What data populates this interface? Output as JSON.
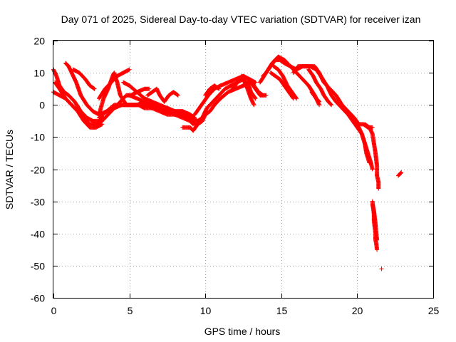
{
  "chart_data": {
    "type": "scatter",
    "title": "Day 071 of 2025, Sidereal Day-to-day VTEC variation (SDTVAR) for receiver izan",
    "xlabel": "GPS time / hours",
    "ylabel": "SDTVAR / TECUs",
    "xlim": [
      0,
      25
    ],
    "ylim": [
      -60,
      20
    ],
    "xticks": [
      0,
      5,
      10,
      15,
      20,
      25
    ],
    "yticks": [
      -60,
      -50,
      -40,
      -30,
      -20,
      -10,
      0,
      10,
      20
    ],
    "grid": true,
    "marker": "+",
    "color": "#ff0000",
    "tracks": [
      {
        "name": "track-1",
        "points": [
          [
            0.0,
            11
          ],
          [
            0.2,
            9
          ],
          [
            0.4,
            6
          ],
          [
            0.7,
            4
          ],
          [
            1.0,
            3
          ],
          [
            1.4,
            1
          ],
          [
            1.8,
            -2
          ],
          [
            2.2,
            -4
          ],
          [
            2.6,
            -5
          ],
          [
            3.0,
            -5
          ],
          [
            3.3,
            -4
          ]
        ]
      },
      {
        "name": "track-2",
        "points": [
          [
            0.0,
            4
          ],
          [
            0.4,
            3
          ],
          [
            0.8,
            2
          ],
          [
            1.2,
            0
          ],
          [
            1.6,
            -2
          ],
          [
            2.0,
            -4
          ],
          [
            2.4,
            -6
          ],
          [
            2.8,
            -6
          ],
          [
            3.2,
            -5
          ],
          [
            3.6,
            -3
          ],
          [
            4.0,
            -1
          ],
          [
            4.4,
            1
          ],
          [
            4.8,
            3
          ],
          [
            5.1,
            3
          ],
          [
            5.5,
            4
          ],
          [
            6.0,
            5
          ],
          [
            6.3,
            5
          ]
        ]
      },
      {
        "name": "track-3",
        "points": [
          [
            0.1,
            7
          ],
          [
            0.4,
            5
          ],
          [
            0.8,
            2
          ],
          [
            1.2,
            0
          ],
          [
            1.6,
            -2
          ],
          [
            2.0,
            -5
          ],
          [
            2.4,
            -7
          ],
          [
            2.8,
            -7
          ],
          [
            3.2,
            -6
          ]
        ]
      },
      {
        "name": "track-4",
        "points": [
          [
            0.8,
            13
          ],
          [
            1.0,
            12
          ],
          [
            1.2,
            10
          ],
          [
            1.5,
            7
          ],
          [
            1.8,
            3
          ],
          [
            2.2,
            0
          ],
          [
            2.6,
            -2
          ],
          [
            3.0,
            -3
          ],
          [
            3.5,
            -2
          ],
          [
            4.0,
            0
          ],
          [
            4.5,
            0
          ],
          [
            5.0,
            0
          ],
          [
            5.5,
            0
          ],
          [
            6.0,
            1
          ],
          [
            6.5,
            0
          ],
          [
            7.0,
            -1
          ],
          [
            7.5,
            -1
          ],
          [
            8.0,
            -2
          ],
          [
            8.5,
            -3
          ],
          [
            9.0,
            -4
          ],
          [
            9.5,
            -5
          ],
          [
            9.8,
            -4
          ],
          [
            10.1,
            -2
          ]
        ]
      },
      {
        "name": "track-5",
        "points": [
          [
            1.3,
            11
          ],
          [
            1.7,
            10
          ],
          [
            2.1,
            8
          ],
          [
            2.4,
            6
          ],
          [
            2.7,
            5
          ]
        ]
      },
      {
        "name": "track-6",
        "points": [
          [
            3.0,
            -3
          ],
          [
            3.3,
            2
          ],
          [
            3.6,
            5
          ],
          [
            3.9,
            9
          ],
          [
            4.0,
            10
          ],
          [
            4.2,
            7
          ],
          [
            4.4,
            3
          ],
          [
            4.8,
            0
          ],
          [
            5.2,
            0
          ],
          [
            5.6,
            0
          ],
          [
            6.0,
            -1
          ],
          [
            6.5,
            -1
          ],
          [
            7.0,
            -1
          ],
          [
            7.5,
            -2
          ],
          [
            8.0,
            -2
          ],
          [
            8.5,
            -2
          ],
          [
            9.0,
            -3
          ],
          [
            9.3,
            -4
          ]
        ]
      },
      {
        "name": "track-7",
        "points": [
          [
            3.0,
            2
          ],
          [
            3.4,
            5
          ],
          [
            3.8,
            7
          ],
          [
            4.2,
            9
          ],
          [
            4.6,
            10
          ],
          [
            5.0,
            11
          ]
        ]
      },
      {
        "name": "track-8",
        "points": [
          [
            3.0,
            -4
          ],
          [
            3.5,
            -2
          ],
          [
            4.0,
            -1
          ],
          [
            4.5,
            0
          ],
          [
            5.0,
            0
          ],
          [
            5.5,
            0
          ],
          [
            6.0,
            0
          ],
          [
            6.5,
            -1
          ],
          [
            7.0,
            -2
          ],
          [
            7.5,
            -3
          ],
          [
            8.0,
            -3
          ],
          [
            8.5,
            -3
          ],
          [
            9.0,
            -4
          ],
          [
            9.3,
            -6
          ],
          [
            9.5,
            -6
          ],
          [
            9.8,
            -5
          ]
        ]
      },
      {
        "name": "track-9",
        "points": [
          [
            4.6,
            7
          ],
          [
            5.0,
            6
          ],
          [
            5.5,
            4
          ],
          [
            6.0,
            2
          ],
          [
            6.5,
            1
          ],
          [
            7.0,
            0
          ],
          [
            7.5,
            -1
          ],
          [
            8.0,
            -2
          ],
          [
            8.5,
            -2
          ],
          [
            9.0,
            -3
          ]
        ]
      },
      {
        "name": "track-10",
        "points": [
          [
            5.0,
            3
          ],
          [
            5.5,
            2
          ],
          [
            6.0,
            1
          ],
          [
            6.5,
            0
          ],
          [
            7.0,
            -1
          ],
          [
            7.5,
            -2
          ],
          [
            8.0,
            -3
          ],
          [
            8.5,
            -4
          ],
          [
            9.0,
            -5
          ],
          [
            9.2,
            -6
          ]
        ]
      },
      {
        "name": "track-11",
        "points": [
          [
            6.2,
            3
          ],
          [
            6.5,
            4
          ],
          [
            6.8,
            5
          ],
          [
            7.0,
            3
          ],
          [
            7.3,
            1
          ],
          [
            7.6,
            3
          ],
          [
            7.9,
            4
          ],
          [
            8.2,
            3
          ]
        ]
      },
      {
        "name": "track-12",
        "points": [
          [
            8.5,
            -7
          ],
          [
            9.0,
            -7
          ],
          [
            9.2,
            -8
          ],
          [
            9.5,
            -6
          ],
          [
            9.8,
            -5
          ],
          [
            10.0,
            -3
          ],
          [
            10.3,
            -2
          ],
          [
            10.6,
            0
          ],
          [
            11.0,
            2
          ],
          [
            11.5,
            4
          ],
          [
            12.0,
            5
          ],
          [
            12.5,
            6
          ],
          [
            13.0,
            7
          ],
          [
            13.3,
            5
          ],
          [
            13.6,
            3
          ],
          [
            14.0,
            3
          ]
        ]
      },
      {
        "name": "track-13",
        "points": [
          [
            9.5,
            -6
          ],
          [
            9.8,
            -4
          ],
          [
            10.1,
            -1
          ],
          [
            10.5,
            1
          ],
          [
            10.9,
            3
          ],
          [
            11.3,
            5
          ],
          [
            11.7,
            6
          ],
          [
            12.1,
            7
          ],
          [
            12.5,
            8
          ],
          [
            12.9,
            8
          ],
          [
            13.3,
            7
          ]
        ]
      },
      {
        "name": "track-14",
        "points": [
          [
            9.3,
            -3
          ],
          [
            9.6,
            -1
          ],
          [
            9.9,
            1
          ],
          [
            10.2,
            3
          ],
          [
            10.6,
            5
          ],
          [
            11.0,
            6
          ],
          [
            11.5,
            7
          ],
          [
            12.0,
            8
          ],
          [
            12.5,
            9
          ],
          [
            12.9,
            8
          ],
          [
            13.2,
            6
          ],
          [
            13.5,
            4
          ],
          [
            13.8,
            3
          ]
        ]
      },
      {
        "name": "track-15",
        "points": [
          [
            10.0,
            3
          ],
          [
            10.3,
            5
          ],
          [
            10.6,
            6
          ],
          [
            10.9,
            5
          ]
        ]
      },
      {
        "name": "track-16",
        "points": [
          [
            11.8,
            5
          ],
          [
            12.1,
            7
          ],
          [
            12.4,
            9
          ],
          [
            12.7,
            6
          ],
          [
            13.0,
            2
          ],
          [
            13.2,
            0
          ]
        ]
      },
      {
        "name": "track-17",
        "points": [
          [
            12.5,
            6
          ],
          [
            12.8,
            7
          ],
          [
            13.0,
            4
          ],
          [
            13.3,
            2
          ]
        ]
      },
      {
        "name": "track-18",
        "points": [
          [
            13.8,
            9
          ],
          [
            14.0,
            10
          ],
          [
            14.3,
            12
          ],
          [
            14.6,
            14
          ],
          [
            14.9,
            14
          ],
          [
            15.2,
            13
          ],
          [
            15.6,
            12
          ],
          [
            16.0,
            11
          ],
          [
            16.4,
            12
          ],
          [
            16.8,
            12
          ],
          [
            17.2,
            12
          ],
          [
            17.5,
            10
          ],
          [
            17.8,
            7
          ],
          [
            18.2,
            5
          ],
          [
            18.6,
            3
          ],
          [
            19.0,
            0
          ],
          [
            19.4,
            -2
          ],
          [
            19.8,
            -4
          ],
          [
            20.1,
            -6
          ],
          [
            20.4,
            -6
          ],
          [
            20.7,
            -7
          ],
          [
            21.0,
            -7
          ]
        ]
      },
      {
        "name": "track-19",
        "points": [
          [
            13.6,
            7
          ],
          [
            14.0,
            10
          ],
          [
            14.4,
            13
          ],
          [
            14.8,
            15
          ],
          [
            15.2,
            14
          ],
          [
            15.6,
            12
          ],
          [
            16.0,
            10
          ],
          [
            16.4,
            8
          ],
          [
            16.8,
            6
          ],
          [
            17.2,
            3
          ],
          [
            17.5,
            0
          ]
        ]
      },
      {
        "name": "track-20",
        "points": [
          [
            14.5,
            12
          ],
          [
            14.8,
            11
          ],
          [
            15.1,
            9
          ],
          [
            15.4,
            6
          ],
          [
            15.7,
            4
          ],
          [
            16.0,
            2
          ]
        ]
      },
      {
        "name": "track-21",
        "points": [
          [
            14.3,
            10
          ],
          [
            14.6,
            9
          ],
          [
            14.9,
            8
          ],
          [
            15.2,
            6
          ],
          [
            15.5,
            4
          ],
          [
            15.8,
            2
          ]
        ]
      },
      {
        "name": "track-22",
        "points": [
          [
            15.8,
            10
          ],
          [
            16.1,
            12
          ],
          [
            16.5,
            12
          ],
          [
            16.9,
            12
          ],
          [
            17.3,
            11
          ],
          [
            17.6,
            9
          ],
          [
            18.0,
            6
          ],
          [
            18.3,
            3
          ],
          [
            18.6,
            1
          ],
          [
            19.0,
            -1
          ],
          [
            19.4,
            -3
          ],
          [
            19.7,
            -5
          ],
          [
            20.0,
            -7
          ],
          [
            20.3,
            -9
          ],
          [
            20.5,
            -12
          ],
          [
            20.7,
            -15
          ],
          [
            20.9,
            -18
          ],
          [
            21.0,
            -20
          ]
        ]
      },
      {
        "name": "track-23",
        "points": [
          [
            16.8,
            11
          ],
          [
            17.1,
            9
          ],
          [
            17.3,
            7
          ],
          [
            17.6,
            5
          ],
          [
            17.8,
            3
          ],
          [
            18.1,
            1
          ],
          [
            18.3,
            0
          ]
        ]
      },
      {
        "name": "track-24",
        "points": [
          [
            17.0,
            4
          ],
          [
            17.3,
            2
          ],
          [
            17.5,
            1
          ]
        ]
      },
      {
        "name": "track-25",
        "points": [
          [
            19.5,
            -3
          ],
          [
            19.8,
            -5
          ],
          [
            20.1,
            -7
          ],
          [
            20.3,
            -9
          ],
          [
            20.5,
            -12
          ],
          [
            20.6,
            -15
          ],
          [
            20.8,
            -18
          ]
        ]
      },
      {
        "name": "track-26",
        "points": [
          [
            20.5,
            -6
          ],
          [
            20.8,
            -7
          ],
          [
            21.0,
            -9
          ],
          [
            21.1,
            -12
          ],
          [
            21.2,
            -15
          ],
          [
            21.3,
            -19
          ],
          [
            21.3,
            -22
          ],
          [
            21.4,
            -24
          ],
          [
            21.4,
            -26
          ]
        ]
      },
      {
        "name": "track-27",
        "points": [
          [
            21.0,
            -30
          ],
          [
            21.05,
            -32
          ],
          [
            21.1,
            -34
          ],
          [
            21.1,
            -36
          ],
          [
            21.15,
            -38
          ],
          [
            21.2,
            -40
          ],
          [
            21.2,
            -42
          ],
          [
            21.25,
            -43
          ],
          [
            21.3,
            -45
          ]
        ]
      },
      {
        "name": "track-28",
        "points": [
          [
            21.0,
            -31
          ],
          [
            21.1,
            -33
          ],
          [
            21.15,
            -35
          ],
          [
            21.2,
            -37
          ],
          [
            21.25,
            -40
          ],
          [
            21.3,
            -42
          ]
        ]
      },
      {
        "name": "track-29",
        "points": [
          [
            21.6,
            -51
          ]
        ]
      },
      {
        "name": "track-30",
        "points": [
          [
            22.7,
            -22
          ],
          [
            22.8,
            -21.5
          ],
          [
            22.9,
            -21
          ]
        ]
      }
    ]
  }
}
